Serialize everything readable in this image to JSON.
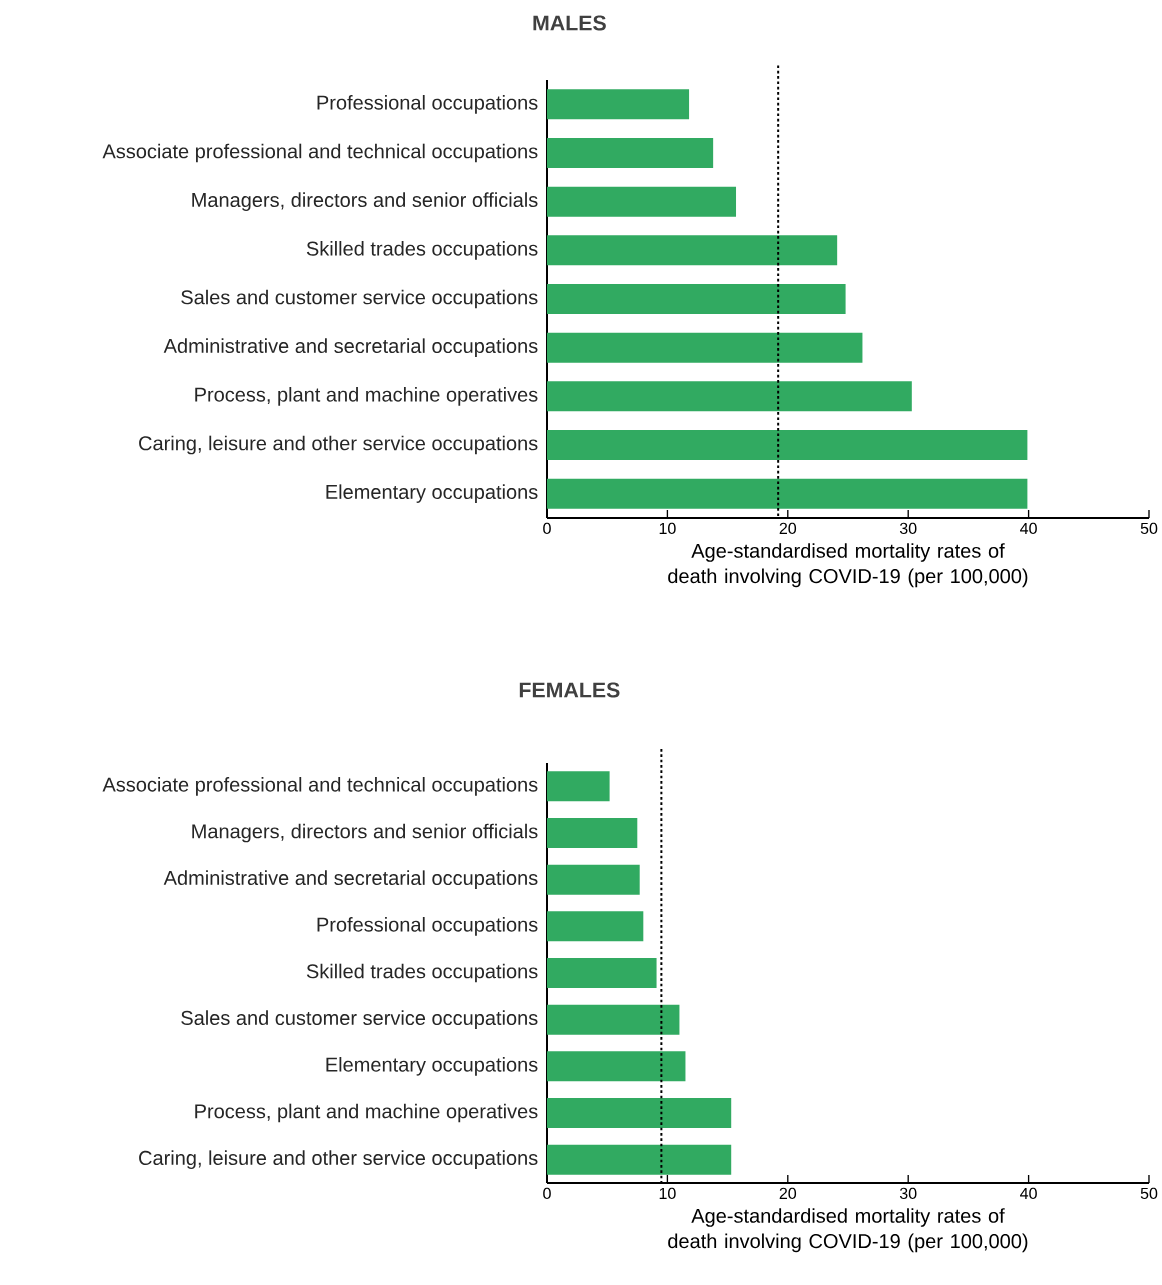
{
  "chart_data": [
    {
      "type": "bar",
      "orientation": "horizontal",
      "title": "MALES",
      "xlabel": "Age-standardised mortality rates of death involving COVID-19 (per 100,000)",
      "categories": [
        "Professional occupations",
        "Associate professional and technical occupations",
        "Managers, directors and senior officials",
        "Skilled trades occupations",
        "Sales and customer service occupations",
        "Administrative and secretarial occupations",
        "Process, plant and machine operatives",
        "Caring, leisure and other service occupations",
        "Elementary occupations"
      ],
      "values": [
        11.8,
        13.8,
        15.7,
        24.1,
        24.8,
        26.2,
        30.3,
        39.9,
        39.9
      ],
      "color": "#31aa61",
      "xlim": [
        0,
        50
      ],
      "xticks": [
        0,
        10,
        20,
        30,
        40,
        50
      ],
      "ref_lines": [
        {
          "axis": "x",
          "value": 19.2,
          "color": "#000000",
          "line_style": "dotted"
        }
      ]
    },
    {
      "type": "bar",
      "orientation": "horizontal",
      "title": "FEMALES",
      "xlabel": "Age-standardised mortality rates of death involving COVID-19 (per 100,000)",
      "categories": [
        "Associate professional and technical occupations",
        "Managers, directors and senior officials",
        "Administrative and secretarial occupations",
        "Professional occupations",
        "Skilled trades occupations",
        "Sales and customer service occupations",
        "Elementary occupations",
        "Process, plant and machine operatives",
        "Caring, leisure and other service occupations"
      ],
      "values": [
        5.2,
        7.5,
        7.7,
        8.0,
        9.1,
        11.0,
        11.5,
        15.3,
        15.3
      ],
      "color": "#31aa61",
      "xlim": [
        0,
        50
      ],
      "xticks": [
        0,
        10,
        20,
        30,
        40,
        50
      ],
      "ref_lines": [
        {
          "axis": "x",
          "value": 9.5,
          "color": "#000000",
          "line_style": "dotted"
        }
      ]
    }
  ]
}
